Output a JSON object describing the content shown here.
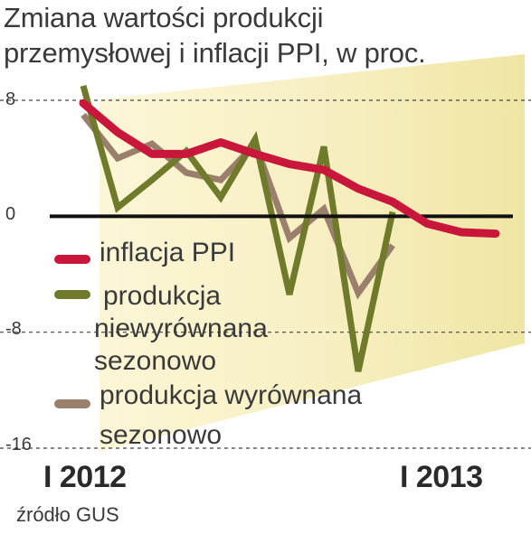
{
  "title_lines": [
    "Zmiana wartości produkcji",
    "przemysłowej i inflacji PPI, w proc."
  ],
  "source": "źródło GUS",
  "colors": {
    "ppi": "#c8173a",
    "unadjusted": "#6f7a2a",
    "adjusted": "#9a7f6c",
    "band_light": "#fbf6d6",
    "band_dark": "#efe6a4",
    "zero_line": "#111111",
    "grid": "#444444"
  },
  "chart_data": {
    "type": "line",
    "title": "Zmiana wartości produkcji przemysłowej i inflacji PPI, w proc.",
    "ylim": [
      -16,
      8
    ],
    "yticks": [
      "8",
      "0",
      "-8",
      "-16"
    ],
    "ytick_values": [
      8,
      0,
      -8,
      -16
    ],
    "xticks": [
      "I 2012",
      "I 2013"
    ],
    "xtick_index": [
      0,
      12
    ],
    "grid": "dashed at -16, -8, 8; solid zero line",
    "legend_position": "center-left",
    "series": [
      {
        "name": "inflacja PPI",
        "key": "ppi",
        "values": [
          7.8,
          5.8,
          4.3,
          4.3,
          5.1,
          4.3,
          3.6,
          3.2,
          1.9,
          1.0,
          -0.5,
          -1.1,
          -1.2
        ]
      },
      {
        "name": "produkcja niewyrównana sezonowo",
        "key": "unadjusted",
        "values": [
          9.0,
          0.6,
          2.5,
          4.5,
          1.3,
          5.3,
          -5.4,
          4.8,
          -10.7,
          0.3
        ]
      },
      {
        "name": "produkcja wyrównana sezonowo",
        "key": "adjusted",
        "values": [
          7.0,
          4.0,
          5.0,
          3.0,
          2.5,
          5.0,
          -1.5,
          0.5,
          -5.3,
          -2.0
        ]
      }
    ]
  },
  "legend": [
    {
      "key": "ppi",
      "lines": [
        "inflacja PPI"
      ]
    },
    {
      "key": "unadjusted",
      "lines": [
        "produkcja",
        "niewyrównana",
        "sezonowo"
      ]
    },
    {
      "key": "adjusted",
      "lines": [
        "produkcja wyrównana",
        "sezonowo"
      ]
    }
  ]
}
